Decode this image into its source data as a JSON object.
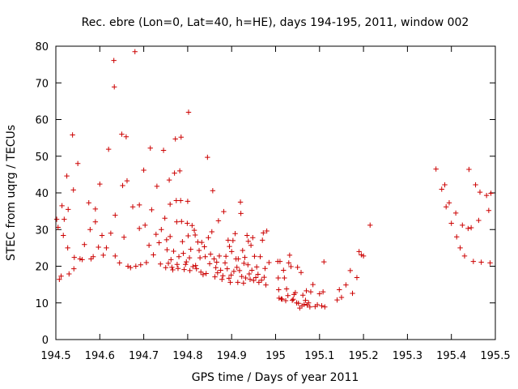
{
  "chart_data": {
    "type": "scatter",
    "title": "Rec. ebre (Lon=0, Lat=40, h=HE), days 194-195, 2011, window 002",
    "xlabel": "GPS time / Days of year 2011",
    "ylabel": "STEC from uqrg / TECUs",
    "xlim": [
      194.5,
      195.5
    ],
    "ylim": [
      0,
      80
    ],
    "xticks": [
      194.5,
      194.6,
      194.7,
      194.8,
      194.9,
      195,
      195.1,
      195.2,
      195.3,
      195.4,
      195.5
    ],
    "xtick_labels": [
      "194.5",
      "194.6",
      "194.7",
      "194.8",
      "194.9",
      "195",
      "195.1",
      "195.2",
      "195.3",
      "195.4",
      "195.5"
    ],
    "yticks": [
      0,
      10,
      20,
      30,
      40,
      50,
      60,
      70,
      80
    ],
    "ytick_labels": [
      "0",
      "10",
      "20",
      "30",
      "40",
      "50",
      "60",
      "70",
      "80"
    ],
    "grid": false,
    "marker": "+",
    "color": "#cc0000",
    "series": [
      {
        "name": "STEC",
        "points": [
          [
            194.502,
            32.8
          ],
          [
            194.505,
            30.6
          ],
          [
            194.508,
            16.4
          ],
          [
            194.512,
            17.3
          ],
          [
            194.514,
            36.5
          ],
          [
            194.517,
            28.4
          ],
          [
            194.519,
            32.8
          ],
          [
            194.525,
            44.6
          ],
          [
            194.527,
            25.0
          ],
          [
            194.528,
            35.5
          ],
          [
            194.53,
            17.9
          ],
          [
            194.538,
            55.8
          ],
          [
            194.54,
            40.8
          ],
          [
            194.541,
            19.3
          ],
          [
            194.542,
            22.4
          ],
          [
            194.55,
            48.0
          ],
          [
            194.555,
            22.0
          ],
          [
            194.56,
            21.8
          ],
          [
            194.565,
            25.9
          ],
          [
            194.575,
            37.3
          ],
          [
            194.578,
            30.0
          ],
          [
            194.58,
            22.0
          ],
          [
            194.585,
            22.6
          ],
          [
            194.59,
            35.6
          ],
          [
            194.59,
            32.1
          ],
          [
            194.597,
            25.2
          ],
          [
            194.6,
            42.4
          ],
          [
            194.605,
            28.4
          ],
          [
            194.608,
            23.0
          ],
          [
            194.615,
            25.0
          ],
          [
            194.62,
            51.9
          ],
          [
            194.625,
            29.0
          ],
          [
            194.632,
            76.1
          ],
          [
            194.633,
            68.9
          ],
          [
            194.635,
            33.9
          ],
          [
            194.635,
            22.8
          ],
          [
            194.645,
            20.9
          ],
          [
            194.65,
            56.0
          ],
          [
            194.652,
            42.0
          ],
          [
            194.655,
            27.9
          ],
          [
            194.66,
            55.3
          ],
          [
            194.662,
            43.3
          ],
          [
            194.664,
            20.0
          ],
          [
            194.67,
            19.6
          ],
          [
            194.675,
            36.2
          ],
          [
            194.68,
            78.5
          ],
          [
            194.682,
            20.0
          ],
          [
            194.69,
            36.7
          ],
          [
            194.69,
            30.3
          ],
          [
            194.693,
            20.4
          ],
          [
            194.7,
            46.2
          ],
          [
            194.703,
            31.2
          ],
          [
            194.706,
            21.0
          ],
          [
            194.712,
            25.7
          ],
          [
            194.715,
            52.2
          ],
          [
            194.718,
            35.4
          ],
          [
            194.722,
            23.1
          ],
          [
            194.728,
            28.7
          ],
          [
            194.73,
            41.8
          ],
          [
            194.735,
            26.4
          ],
          [
            194.738,
            20.6
          ],
          [
            194.74,
            30.0
          ],
          [
            194.745,
            51.6
          ],
          [
            194.748,
            33.1
          ],
          [
            194.75,
            19.6
          ],
          [
            194.752,
            27.2
          ],
          [
            194.753,
            24.5
          ],
          [
            194.756,
            20.8
          ],
          [
            194.758,
            43.5
          ],
          [
            194.76,
            36.9
          ],
          [
            194.76,
            28.1
          ],
          [
            194.762,
            21.8
          ],
          [
            194.764,
            19.7
          ],
          [
            194.766,
            19.0
          ],
          [
            194.768,
            24.1
          ],
          [
            194.77,
            45.4
          ],
          [
            194.772,
            54.7
          ],
          [
            194.774,
            37.9
          ],
          [
            194.775,
            32.1
          ],
          [
            194.776,
            20.5
          ],
          [
            194.778,
            19.4
          ],
          [
            194.78,
            22.6
          ],
          [
            194.782,
            46.0
          ],
          [
            194.784,
            37.9
          ],
          [
            194.785,
            55.2
          ],
          [
            194.786,
            32.2
          ],
          [
            194.788,
            26.7
          ],
          [
            194.79,
            23.5
          ],
          [
            194.792,
            19.1
          ],
          [
            194.795,
            20.5
          ],
          [
            194.797,
            21.2
          ],
          [
            194.799,
            31.7
          ],
          [
            194.8,
            37.7
          ],
          [
            194.801,
            28.3
          ],
          [
            194.802,
            62.0
          ],
          [
            194.804,
            22.3
          ],
          [
            194.805,
            18.8
          ],
          [
            194.807,
            24.6
          ],
          [
            194.81,
            31.1
          ],
          [
            194.812,
            19.9
          ],
          [
            194.815,
            29.8
          ],
          [
            194.817,
            28.5
          ],
          [
            194.818,
            20.2
          ],
          [
            194.82,
            19.3
          ],
          [
            194.823,
            26.6
          ],
          [
            194.826,
            24.3
          ],
          [
            194.828,
            22.3
          ],
          [
            194.83,
            18.4
          ],
          [
            194.832,
            26.5
          ],
          [
            194.835,
            17.7
          ],
          [
            194.838,
            25.3
          ],
          [
            194.84,
            22.6
          ],
          [
            194.842,
            18.0
          ],
          [
            194.845,
            49.7
          ],
          [
            194.847,
            27.8
          ],
          [
            194.85,
            20.7
          ],
          [
            194.852,
            23.3
          ],
          [
            194.855,
            29.4
          ],
          [
            194.857,
            40.6
          ],
          [
            194.86,
            22.0
          ],
          [
            194.862,
            17.1
          ],
          [
            194.864,
            19.6
          ],
          [
            194.866,
            21.1
          ],
          [
            194.868,
            18.2
          ],
          [
            194.87,
            32.4
          ],
          [
            194.872,
            22.8
          ],
          [
            194.875,
            18.9
          ],
          [
            194.878,
            16.4
          ],
          [
            194.88,
            17.4
          ],
          [
            194.882,
            34.9
          ],
          [
            194.885,
            20.9
          ],
          [
            194.887,
            22.7
          ],
          [
            194.89,
            19.3
          ],
          [
            194.892,
            27.1
          ],
          [
            194.894,
            16.7
          ],
          [
            194.895,
            25.4
          ],
          [
            194.897,
            15.6
          ],
          [
            194.899,
            17.6
          ],
          [
            194.9,
            24.0
          ],
          [
            194.903,
            27.0
          ],
          [
            194.905,
            18.6
          ],
          [
            194.908,
            28.9
          ],
          [
            194.91,
            22.0
          ],
          [
            194.912,
            19.7
          ],
          [
            194.914,
            15.6
          ],
          [
            194.915,
            22.0
          ],
          [
            194.918,
            18.8
          ],
          [
            194.92,
            37.5
          ],
          [
            194.921,
            34.4
          ],
          [
            194.923,
            17.2
          ],
          [
            194.925,
            24.3
          ],
          [
            194.927,
            15.4
          ],
          [
            194.928,
            20.8
          ],
          [
            194.93,
            22.4
          ],
          [
            194.932,
            16.8
          ],
          [
            194.935,
            28.4
          ],
          [
            194.937,
            20.4
          ],
          [
            194.938,
            26.8
          ],
          [
            194.94,
            17.9
          ],
          [
            194.942,
            16.4
          ],
          [
            194.944,
            25.7
          ],
          [
            194.946,
            18.9
          ],
          [
            194.948,
            27.8
          ],
          [
            194.95,
            16.1
          ],
          [
            194.952,
            22.7
          ],
          [
            194.955,
            16.9
          ],
          [
            194.957,
            19.8
          ],
          [
            194.96,
            17.8
          ],
          [
            194.962,
            15.6
          ],
          [
            194.965,
            22.6
          ],
          [
            194.968,
            16.2
          ],
          [
            194.97,
            27.1
          ],
          [
            194.972,
            29.1
          ],
          [
            194.974,
            17.0
          ],
          [
            194.976,
            19.4
          ],
          [
            194.978,
            14.9
          ],
          [
            194.98,
            29.6
          ],
          [
            194.985,
            21.0
          ],
          [
            195.005,
            21.3
          ],
          [
            195.006,
            16.8
          ],
          [
            195.007,
            13.6
          ],
          [
            195.008,
            11.3
          ],
          [
            195.01,
            21.3
          ],
          [
            195.013,
            11.1
          ],
          [
            195.015,
            11.0
          ],
          [
            195.018,
            18.9
          ],
          [
            195.02,
            16.8
          ],
          [
            195.023,
            10.6
          ],
          [
            195.025,
            13.8
          ],
          [
            195.028,
            12.0
          ],
          [
            195.03,
            20.9
          ],
          [
            195.032,
            23.0
          ],
          [
            195.035,
            19.9
          ],
          [
            195.038,
            10.7
          ],
          [
            195.04,
            11.0
          ],
          [
            195.042,
            12.3
          ],
          [
            195.045,
            12.8
          ],
          [
            195.048,
            10.0
          ],
          [
            195.05,
            19.7
          ],
          [
            195.052,
            9.9
          ],
          [
            195.055,
            8.6
          ],
          [
            195.058,
            18.3
          ],
          [
            195.06,
            9.2
          ],
          [
            195.062,
            12.1
          ],
          [
            195.065,
            9.6
          ],
          [
            195.068,
            10.7
          ],
          [
            195.07,
            13.3
          ],
          [
            195.072,
            9.4
          ],
          [
            195.075,
            10.0
          ],
          [
            195.078,
            8.9
          ],
          [
            195.08,
            13.0
          ],
          [
            195.085,
            15.0
          ],
          [
            195.09,
            9.0
          ],
          [
            195.095,
            9.5
          ],
          [
            195.1,
            12.5
          ],
          [
            195.105,
            9.2
          ],
          [
            195.108,
            13.0
          ],
          [
            195.11,
            21.2
          ],
          [
            195.112,
            8.9
          ],
          [
            195.14,
            10.8
          ],
          [
            195.145,
            13.6
          ],
          [
            195.15,
            11.5
          ],
          [
            195.16,
            14.9
          ],
          [
            195.17,
            18.8
          ],
          [
            195.175,
            12.6
          ],
          [
            195.185,
            16.9
          ],
          [
            195.19,
            24.0
          ],
          [
            195.195,
            23.1
          ],
          [
            195.2,
            22.8
          ],
          [
            195.215,
            31.2
          ],
          [
            195.365,
            46.5
          ],
          [
            195.378,
            41.0
          ],
          [
            195.385,
            42.2
          ],
          [
            195.388,
            36.2
          ],
          [
            195.395,
            37.3
          ],
          [
            195.4,
            31.7
          ],
          [
            195.41,
            34.5
          ],
          [
            195.412,
            28.0
          ],
          [
            195.42,
            25.0
          ],
          [
            195.425,
            31.2
          ],
          [
            195.43,
            22.8
          ],
          [
            195.438,
            30.3
          ],
          [
            195.44,
            46.4
          ],
          [
            195.445,
            30.5
          ],
          [
            195.45,
            21.3
          ],
          [
            195.455,
            42.2
          ],
          [
            195.462,
            32.5
          ],
          [
            195.465,
            40.2
          ],
          [
            195.468,
            21.1
          ],
          [
            195.48,
            39.3
          ],
          [
            195.485,
            35.2
          ],
          [
            195.488,
            20.9
          ],
          [
            195.49,
            39.9
          ]
        ]
      }
    ]
  }
}
